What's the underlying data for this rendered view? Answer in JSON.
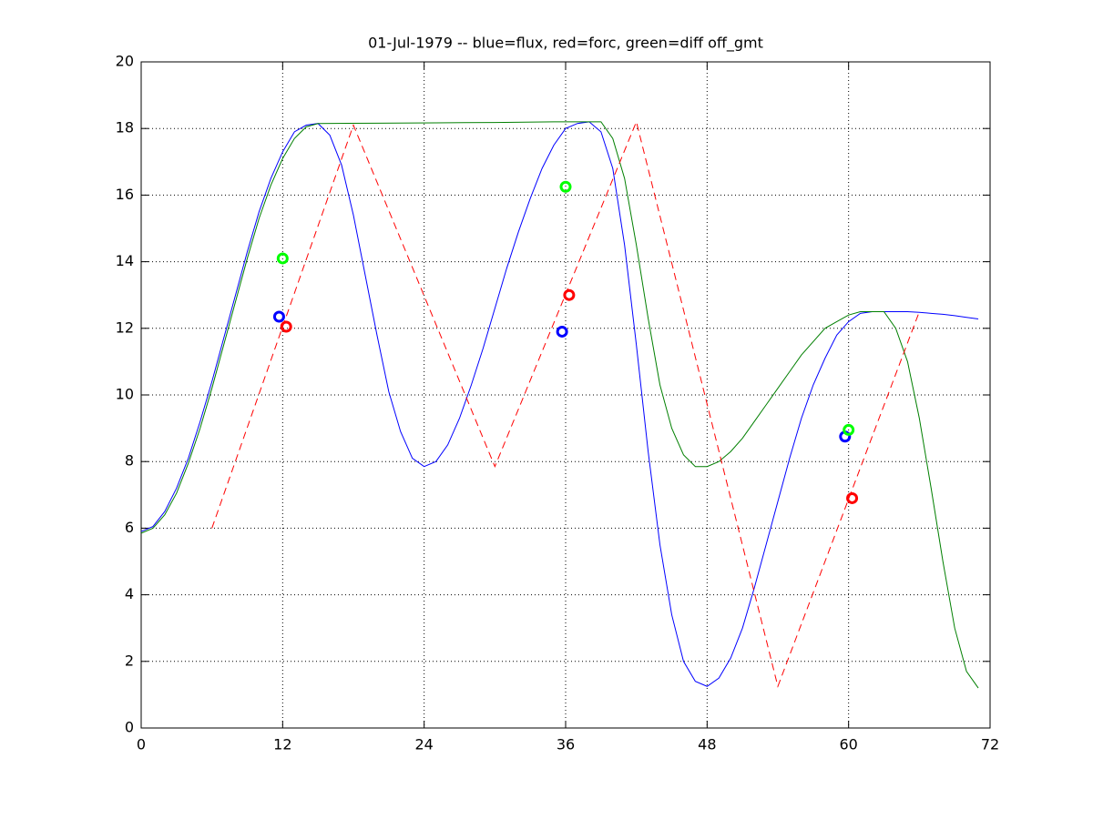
{
  "chart_data": {
    "type": "line",
    "title": "01-Jul-1979 -- blue=flux, red=forc, green=diff off_gmt",
    "xlim": [
      0,
      72
    ],
    "xticks": [
      0,
      12,
      24,
      36,
      48,
      60,
      72
    ],
    "ylim": [
      0,
      20
    ],
    "yticks": [
      0,
      2,
      4,
      6,
      8,
      10,
      12,
      14,
      16,
      18,
      20
    ],
    "grid": true,
    "series": [
      {
        "color": "#0000ff",
        "linestyle": "solid",
        "x": [
          0,
          1,
          2,
          3,
          4,
          5,
          6,
          7,
          8,
          9,
          10,
          11,
          12,
          13,
          14,
          15,
          16,
          17,
          18,
          19,
          20,
          21,
          22,
          23,
          24,
          25,
          26,
          27,
          28,
          29,
          30,
          31,
          32,
          33,
          34,
          35,
          36,
          37,
          38,
          39,
          40,
          41,
          42,
          43,
          44,
          45,
          46,
          47,
          48,
          49,
          50,
          51,
          52,
          53,
          54,
          55,
          56,
          57,
          58,
          59,
          60,
          61,
          62,
          63,
          64,
          65,
          66,
          67,
          68,
          69,
          70,
          71
        ],
        "values": [
          5.9,
          6.05,
          6.5,
          7.2,
          8.1,
          9.2,
          10.4,
          11.7,
          13,
          14.3,
          15.5,
          16.5,
          17.3,
          17.9,
          18.1,
          18.15,
          17.8,
          16.9,
          15.4,
          13.6,
          11.8,
          10.1,
          8.9,
          8.1,
          7.85,
          8,
          8.5,
          9.3,
          10.3,
          11.4,
          12.6,
          13.8,
          14.9,
          15.9,
          16.8,
          17.5,
          18,
          18.15,
          18.2,
          17.9,
          16.8,
          14.5,
          11.5,
          8.3,
          5.5,
          3.4,
          2,
          1.4,
          1.25,
          1.5,
          2.1,
          3,
          4.2,
          5.5,
          6.8,
          8.1,
          9.3,
          10.3,
          11.1,
          11.8,
          12.2,
          12.45,
          12.5,
          12.5,
          12.5,
          12.5,
          12.48,
          12.45,
          12.42,
          12.38,
          12.33,
          12.28
        ]
      },
      {
        "color": "#007f00",
        "linestyle": "solid",
        "x": [
          0,
          1,
          2,
          3,
          4,
          5,
          6,
          7,
          8,
          9,
          10,
          11,
          12,
          13,
          14,
          15,
          20,
          25,
          30,
          35,
          39,
          40,
          41,
          42,
          43,
          44,
          45,
          46,
          47,
          48,
          49,
          50,
          51,
          52,
          53,
          54,
          55,
          56,
          57,
          58,
          59,
          60,
          61,
          62,
          63,
          64,
          65,
          66,
          67,
          68,
          69,
          70,
          71
        ],
        "values": [
          5.85,
          6,
          6.4,
          7.05,
          7.95,
          9,
          10.2,
          11.5,
          12.8,
          14.1,
          15.3,
          16.3,
          17.1,
          17.7,
          18.05,
          18.15,
          18.16,
          18.17,
          18.18,
          18.2,
          18.2,
          17.7,
          16.5,
          14.5,
          12.3,
          10.3,
          9,
          8.2,
          7.85,
          7.85,
          8,
          8.3,
          8.7,
          9.2,
          9.7,
          10.2,
          10.7,
          11.2,
          11.6,
          12,
          12.2,
          12.4,
          12.5,
          12.5,
          12.5,
          12,
          11,
          9.3,
          7.2,
          5,
          3,
          1.7,
          1.2
        ]
      },
      {
        "color": "#ff0000",
        "linestyle": "dashed",
        "x": [
          6,
          18,
          30,
          42,
          54,
          66
        ],
        "values": [
          6,
          18.1,
          7.85,
          18.2,
          1.25,
          12.5
        ]
      },
      {
        "color": "#0000ff",
        "marker": "circle",
        "x": [
          11.7,
          35.7,
          59.7
        ],
        "values": [
          12.35,
          11.9,
          8.75
        ]
      },
      {
        "color": "#ff0000",
        "marker": "circle",
        "x": [
          12.3,
          36.3,
          60.3
        ],
        "values": [
          12.05,
          13,
          6.9
        ]
      },
      {
        "color": "#00ff00",
        "marker": "circle",
        "x": [
          12,
          36,
          60
        ],
        "values": [
          14.1,
          16.25,
          8.95
        ]
      }
    ]
  }
}
